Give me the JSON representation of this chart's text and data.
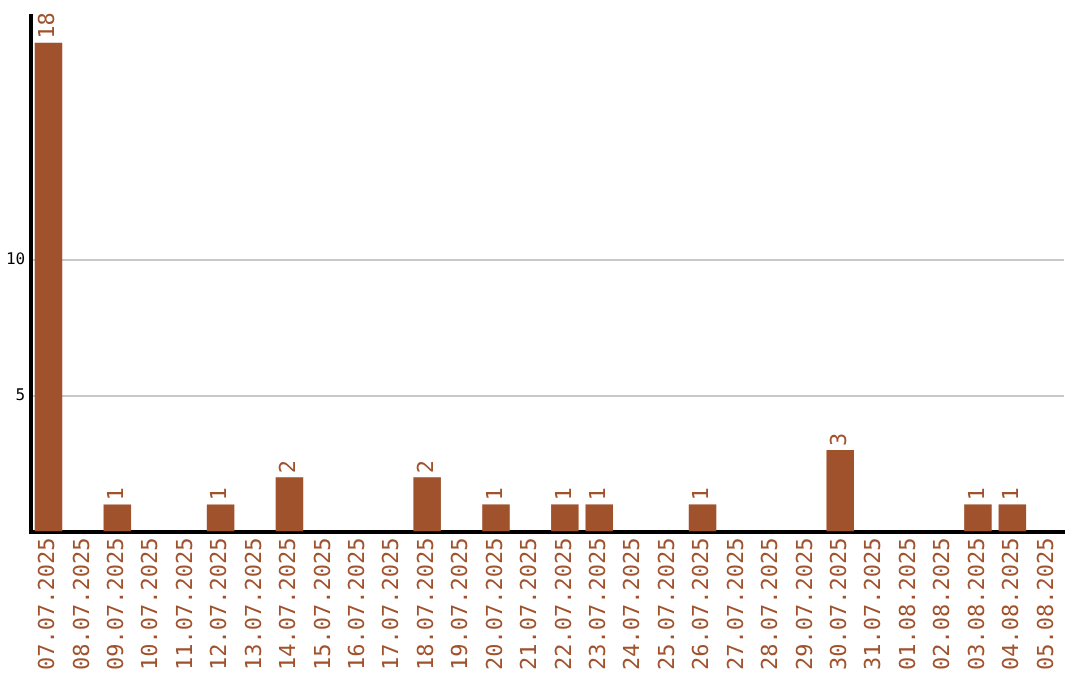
{
  "chart_data": {
    "type": "bar",
    "categories": [
      "07.07.2025",
      "08.07.2025",
      "09.07.2025",
      "10.07.2025",
      "11.07.2025",
      "12.07.2025",
      "13.07.2025",
      "14.07.2025",
      "15.07.2025",
      "16.07.2025",
      "17.07.2025",
      "18.07.2025",
      "19.07.2025",
      "20.07.2025",
      "21.07.2025",
      "22.07.2025",
      "23.07.2025",
      "24.07.2025",
      "25.07.2025",
      "26.07.2025",
      "27.07.2025",
      "28.07.2025",
      "29.07.2025",
      "30.07.2025",
      "31.07.2025",
      "01.08.2025",
      "02.08.2025",
      "03.08.2025",
      "04.08.2025",
      "05.08.2025"
    ],
    "values": [
      18,
      0,
      1,
      0,
      0,
      1,
      0,
      2,
      0,
      0,
      0,
      2,
      0,
      1,
      0,
      1,
      1,
      0,
      0,
      1,
      0,
      0,
      0,
      3,
      0,
      0,
      0,
      1,
      1,
      0
    ],
    "value_labels": [
      "18",
      null,
      "1",
      null,
      null,
      "1",
      null,
      "2",
      null,
      null,
      null,
      "2",
      null,
      "1",
      null,
      "1",
      "1",
      null,
      null,
      "1",
      null,
      null,
      null,
      "3",
      null,
      null,
      null,
      "1",
      "1",
      null
    ],
    "color": "#a0522d",
    "ylim": [
      0,
      19
    ],
    "yticks": [
      5,
      10
    ],
    "grid": "y",
    "legend": false
  }
}
